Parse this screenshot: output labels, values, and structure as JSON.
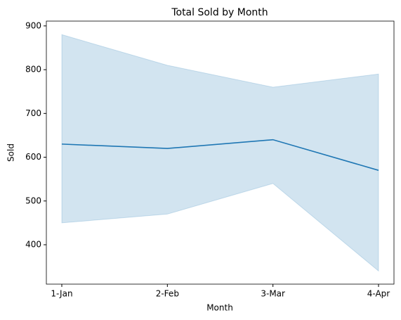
{
  "chart_data": {
    "type": "line",
    "title": "Total Sold by Month",
    "x_label": "Month",
    "y_label": "Sold",
    "categories": [
      "1-Jan",
      "2-Feb",
      "3-Mar",
      "4-Apr"
    ],
    "series": [
      {
        "values": [
          630,
          620,
          640,
          570
        ],
        "upper": [
          880,
          810,
          760,
          790
        ],
        "lower": [
          450,
          470,
          540,
          340
        ],
        "color": "#1f77b4"
      }
    ],
    "ylim": [
      310,
      911
    ],
    "yticks": [
      400,
      500,
      600,
      700,
      800,
      900
    ]
  }
}
